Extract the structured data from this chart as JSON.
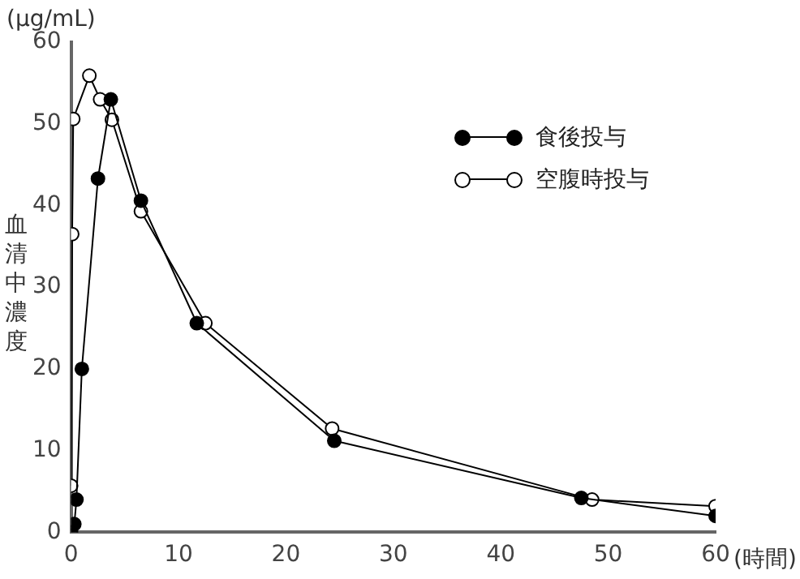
{
  "chart_data": {
    "type": "line",
    "ylabel": "血清中濃度",
    "xlabel": "(時間)",
    "annotations": [
      "(μg/mL)"
    ],
    "xlim": [
      0,
      60
    ],
    "xticks": [
      0,
      10,
      20,
      30,
      40,
      50,
      60
    ],
    "ylim": [
      0,
      60
    ],
    "yticks": [
      0,
      10,
      20,
      30,
      40,
      50,
      60
    ],
    "grid": false,
    "legend": "top right",
    "marker": "circle",
    "line_style": "solid",
    "series": [
      {
        "name": "食後投与",
        "color": "#000000",
        "x": [
          0,
          0.3,
          0.5,
          1,
          2.5,
          3.7,
          6.5,
          11.7,
          24.5,
          47.5,
          60
        ],
        "values": [
          0,
          1,
          4,
          20,
          43.3,
          53,
          40.6,
          25.6,
          11.2,
          4.2,
          2
        ]
      },
      {
        "name": "空腹時投与",
        "color": "#ffffff",
        "x": [
          0,
          0.1,
          0.2,
          1.7,
          2.7,
          3.8,
          6.5,
          12.5,
          24.3,
          48.5,
          60
        ],
        "values": [
          5.7,
          36.5,
          50.6,
          55.9,
          53,
          50.5,
          39.3,
          25.6,
          12.7,
          4,
          3.2
        ]
      }
    ]
  }
}
